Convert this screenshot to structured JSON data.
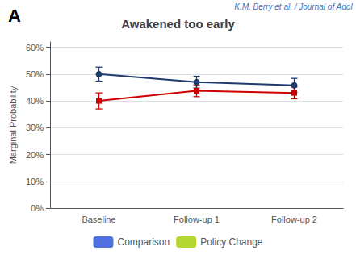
{
  "chart_data": {
    "type": "line",
    "title": "Awakened too early",
    "ylabel": "Marginal Probability",
    "categories": [
      "Baseline",
      "Follow-up 1",
      "Follow-up 2"
    ],
    "series": [
      {
        "name": "Comparison",
        "color": "#1F3A6E",
        "marker": "circle",
        "values": [
          0.5,
          0.47,
          0.458
        ],
        "yerr": [
          0.026,
          0.022,
          0.026
        ]
      },
      {
        "name": "Policy Change",
        "color": "#CC0000",
        "marker": "square",
        "values": [
          0.4,
          0.438,
          0.43
        ],
        "yerr": [
          0.03,
          0.022,
          0.022
        ]
      }
    ],
    "ylim": [
      0.0,
      0.62
    ],
    "yticks": [
      {
        "value": 0.0,
        "label": "0%"
      },
      {
        "value": 0.1,
        "label": "10%"
      },
      {
        "value": 0.2,
        "label": "20%"
      },
      {
        "value": 0.3,
        "label": "30%"
      },
      {
        "value": 0.4,
        "label": "40%"
      },
      {
        "value": 0.5,
        "label": "50%"
      },
      {
        "value": 0.6,
        "label": "60%"
      }
    ],
    "grid": true,
    "legend": "bottom",
    "annotations": [
      {
        "text": "A"
      },
      {
        "text": "K.M. Berry et al. / Journal of Adol",
        "color": "#4472C4"
      }
    ]
  }
}
